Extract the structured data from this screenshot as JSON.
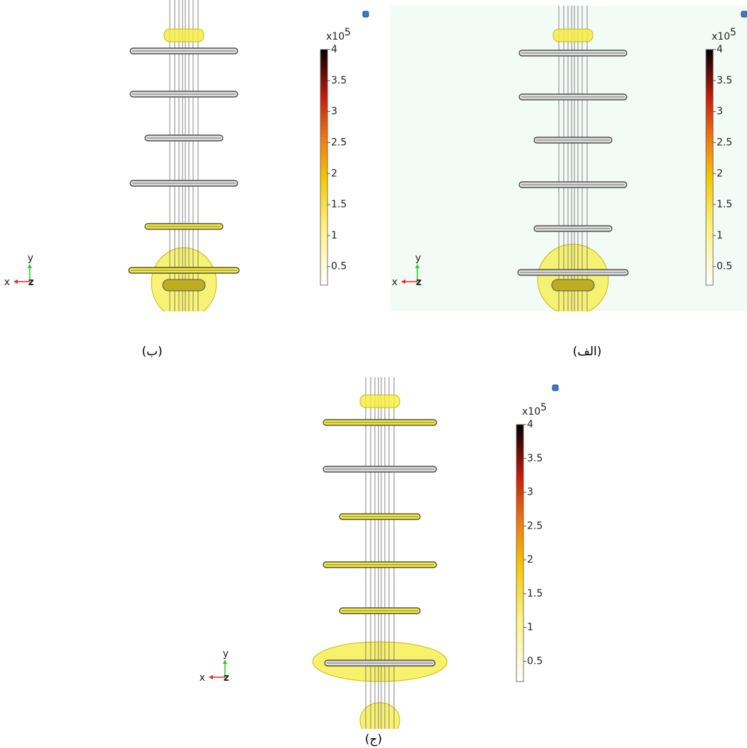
{
  "panels": [
    {
      "caption": "(ب)",
      "colorbar": {
        "multiplier": "x10",
        "exponent": "5",
        "lim": [
          0.2,
          4
        ],
        "ticks": [
          4,
          3.5,
          3,
          2.5,
          2,
          1.5,
          1,
          0.5
        ]
      },
      "axes": {
        "x": "x",
        "y": "y",
        "z": "z"
      }
    },
    {
      "caption": "(الف)",
      "colorbar": {
        "multiplier": "x10",
        "exponent": "5",
        "lim": [
          0.2,
          4
        ],
        "ticks": [
          4,
          3.5,
          3,
          2.5,
          2,
          1.5,
          1,
          0.5
        ]
      },
      "axes": {
        "x": "x",
        "y": "y",
        "z": "z"
      }
    },
    {
      "caption": "(ج)",
      "colorbar": {
        "multiplier": "x10",
        "exponent": "5",
        "lim": [
          0.2,
          4
        ],
        "ticks": [
          4,
          3.5,
          3,
          2.5,
          2,
          1.5,
          1,
          0.5
        ]
      },
      "axes": {
        "x": "x",
        "y": "y",
        "z": "z"
      }
    }
  ]
}
